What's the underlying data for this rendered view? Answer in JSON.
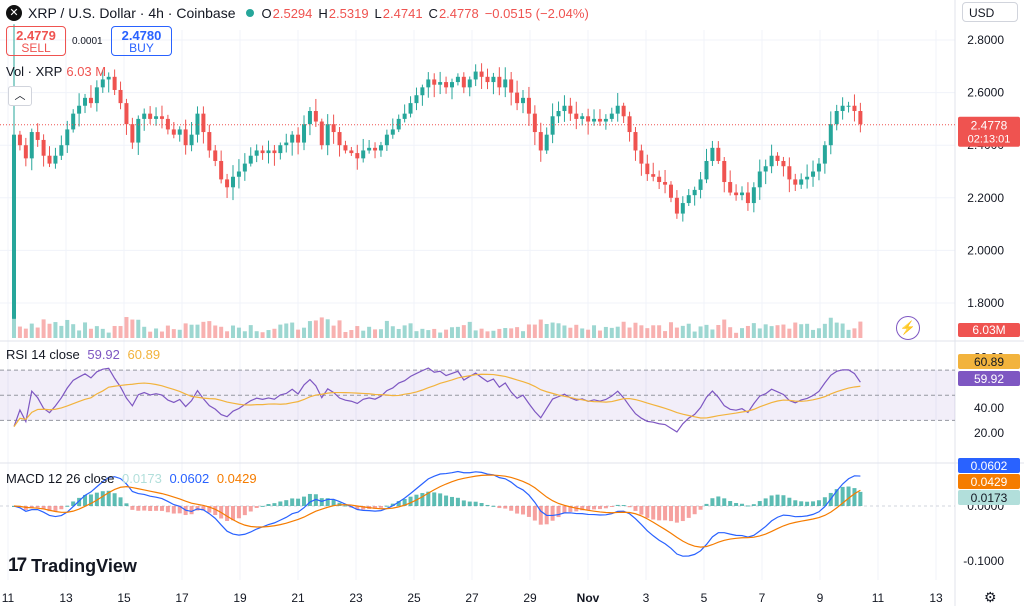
{
  "header": {
    "symbol_icon": "x-icon",
    "title": "XRP / U.S. Dollar · 4h · Coinbase",
    "o_label": "O",
    "o_value": "2.5294",
    "h_label": "H",
    "h_value": "2.5319",
    "l_label": "L",
    "l_value": "2.4741",
    "c_label": "C",
    "c_value": "2.4778",
    "change": "−0.0515 (−2.04%)"
  },
  "trade": {
    "sell_price": "2.4779",
    "sell_label": "SELL",
    "buy_price": "2.4780",
    "buy_label": "BUY",
    "spread": "0.0001"
  },
  "volume_legend": {
    "label": "Vol · XRP",
    "value": "6.03 M"
  },
  "currency": "USD",
  "branding": "TradingView",
  "colors": {
    "up": "#26a69a",
    "down": "#ef5350",
    "rsi": "#7e57c2",
    "rsi_ma": "#f2b33d",
    "macd": "#2962ff",
    "signal": "#f57c00"
  },
  "chart_data": {
    "type": "candlestick",
    "timeframe": "4h",
    "x_tick_labels": [
      "11",
      "13",
      "15",
      "17",
      "19",
      "21",
      "23",
      "25",
      "27",
      "29",
      "Nov",
      "3",
      "5",
      "7",
      "9",
      "11",
      "13"
    ],
    "price_axis": {
      "ticks": [
        "2.8000",
        "2.6000",
        "2.4000",
        "2.2000",
        "2.0000",
        "1.8000"
      ],
      "range": [
        1.72,
        2.9
      ]
    },
    "last_price": "2.4778",
    "countdown": "02:13:01",
    "volume_value": "6.03M",
    "candle_closes": [
      2.44,
      2.4,
      2.35,
      2.45,
      2.42,
      2.36,
      2.33,
      2.36,
      2.4,
      2.46,
      2.52,
      2.55,
      2.58,
      2.56,
      2.62,
      2.65,
      2.66,
      2.61,
      2.56,
      2.48,
      2.41,
      2.5,
      2.52,
      2.5,
      2.51,
      2.5,
      2.46,
      2.44,
      2.46,
      2.4,
      2.44,
      2.52,
      2.45,
      2.38,
      2.34,
      2.27,
      2.24,
      2.28,
      2.3,
      2.33,
      2.36,
      2.38,
      2.37,
      2.38,
      2.37,
      2.4,
      2.41,
      2.44,
      2.41,
      2.48,
      2.53,
      2.49,
      2.4,
      2.48,
      2.45,
      2.4,
      2.38,
      2.37,
      2.35,
      2.38,
      2.39,
      2.38,
      2.4,
      2.44,
      2.46,
      2.5,
      2.52,
      2.56,
      2.59,
      2.62,
      2.65,
      2.63,
      2.64,
      2.62,
      2.64,
      2.66,
      2.62,
      2.65,
      2.68,
      2.66,
      2.64,
      2.66,
      2.62,
      2.65,
      2.6,
      2.56,
      2.58,
      2.52,
      2.45,
      2.38,
      2.44,
      2.51,
      2.53,
      2.55,
      2.52,
      2.5,
      2.51,
      2.49,
      2.5,
      2.49,
      2.5,
      2.52,
      2.55,
      2.51,
      2.45,
      2.38,
      2.33,
      2.29,
      2.28,
      2.26,
      2.25,
      2.2,
      2.14,
      2.18,
      2.21,
      2.23,
      2.27,
      2.34,
      2.39,
      2.34,
      2.26,
      2.22,
      2.21,
      2.22,
      2.18,
      2.24,
      2.3,
      2.32,
      2.36,
      2.34,
      2.32,
      2.27,
      2.25,
      2.27,
      2.28,
      2.3,
      2.33,
      2.4,
      2.48,
      2.53,
      2.55,
      2.55,
      2.53,
      2.48
    ],
    "rsi": {
      "length": 14,
      "value": "59.92",
      "ma_value": "60.89",
      "axis_ticks": [
        "80.00",
        "40.00",
        "20.00"
      ]
    },
    "macd": {
      "fast": 12,
      "slow": 26,
      "hist_value": "0.0173",
      "macd_value": "0.0602",
      "signal_value": "0.0429",
      "axis_ticks": [
        "0.0000",
        "-0.1000"
      ]
    }
  }
}
